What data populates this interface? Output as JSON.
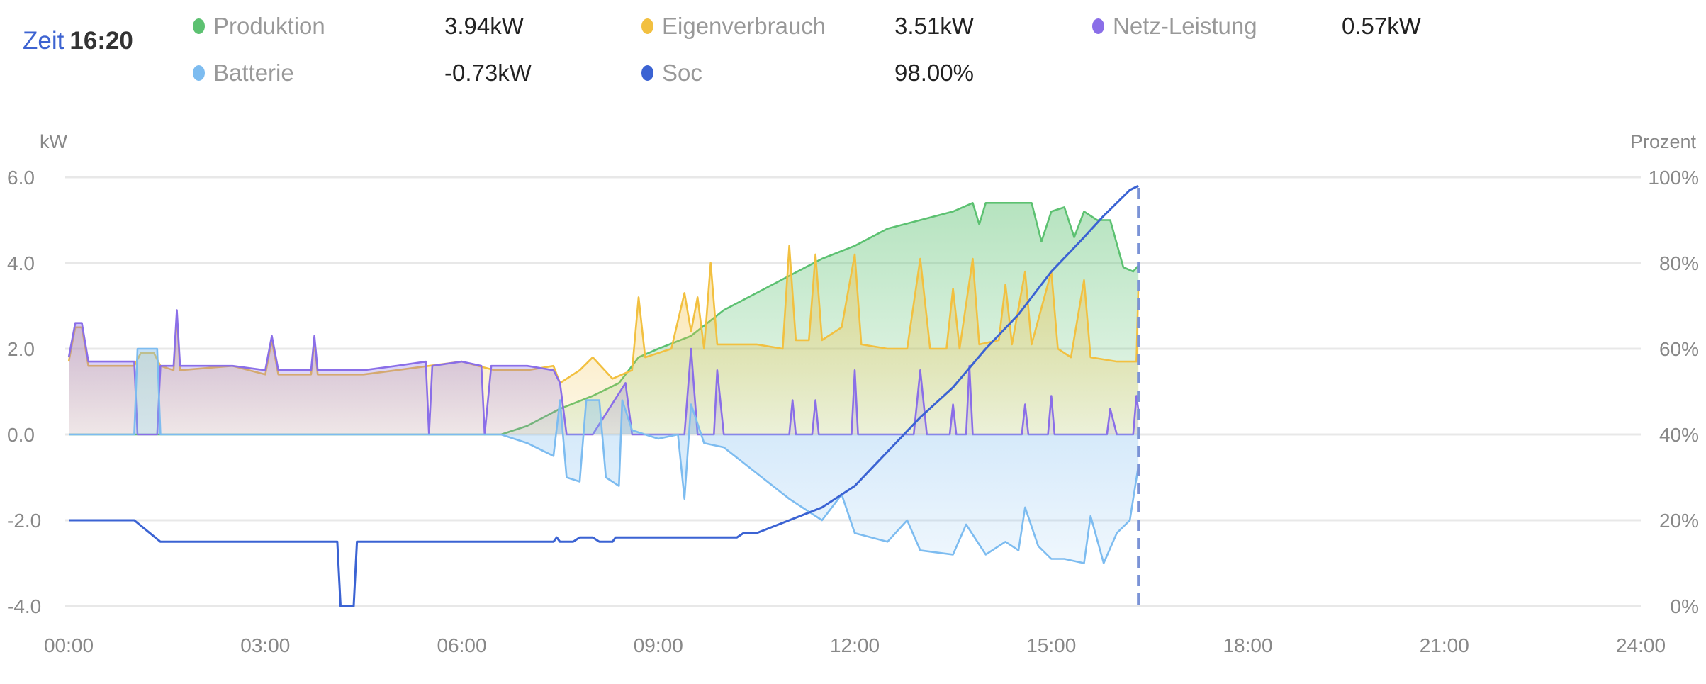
{
  "header": {
    "time_label": "Zeit",
    "time_value": "16:20"
  },
  "legend": [
    {
      "name": "Produktion",
      "value": "3.94kW",
      "color": "#5cc171"
    },
    {
      "name": "Eigenverbrauch",
      "value": "3.51kW",
      "color": "#f2c040"
    },
    {
      "name": "Netz-Leistung",
      "value": "0.57kW",
      "color": "#8a6ee8"
    },
    {
      "name": "Batterie",
      "value": "-0.73kW",
      "color": "#7dbcf0"
    },
    {
      "name": "Soc",
      "value": "98.00%",
      "color": "#3b63d3"
    }
  ],
  "chart_data": {
    "type": "line",
    "left_axis_label": "kW",
    "right_axis_label": "Prozent",
    "ylim": [
      -4,
      6
    ],
    "ylim_right": [
      0,
      100
    ],
    "xlim_hours": [
      0,
      24
    ],
    "left_ticks": [
      "6.0",
      "4.0",
      "2.0",
      "0.0",
      "-2.0",
      "-4.0"
    ],
    "right_ticks": [
      "100%",
      "80%",
      "60%",
      "40%",
      "20%",
      "0%"
    ],
    "x_ticks": [
      "00:00",
      "03:00",
      "06:00",
      "09:00",
      "12:00",
      "15:00",
      "18:00",
      "21:00",
      "24:00"
    ],
    "cursor_hour": 16.33,
    "series": [
      {
        "name": "Produktion",
        "axis": "left",
        "color": "#5cc171",
        "fill": true,
        "points": [
          [
            0,
            0
          ],
          [
            6.6,
            0
          ],
          [
            7.0,
            0.2
          ],
          [
            7.5,
            0.6
          ],
          [
            8.0,
            0.9
          ],
          [
            8.4,
            1.2
          ],
          [
            8.7,
            1.8
          ],
          [
            9.0,
            2.0
          ],
          [
            9.5,
            2.3
          ],
          [
            10.0,
            2.9
          ],
          [
            10.5,
            3.3
          ],
          [
            11.0,
            3.7
          ],
          [
            11.5,
            4.1
          ],
          [
            12.0,
            4.4
          ],
          [
            12.5,
            4.8
          ],
          [
            13.0,
            5.0
          ],
          [
            13.5,
            5.2
          ],
          [
            13.8,
            5.4
          ],
          [
            13.9,
            4.9
          ],
          [
            14.0,
            5.4
          ],
          [
            14.7,
            5.4
          ],
          [
            14.85,
            4.5
          ],
          [
            15.0,
            5.2
          ],
          [
            15.2,
            5.3
          ],
          [
            15.35,
            4.6
          ],
          [
            15.5,
            5.2
          ],
          [
            15.7,
            5.0
          ],
          [
            15.9,
            5.0
          ],
          [
            16.1,
            3.9
          ],
          [
            16.25,
            3.8
          ],
          [
            16.33,
            3.94
          ]
        ]
      },
      {
        "name": "Eigenverbrauch",
        "axis": "left",
        "color": "#f2c040",
        "fill": true,
        "points": [
          [
            0,
            1.7
          ],
          [
            0.1,
            2.5
          ],
          [
            0.2,
            2.5
          ],
          [
            0.3,
            1.6
          ],
          [
            1.0,
            1.6
          ],
          [
            1.1,
            1.9
          ],
          [
            1.3,
            1.9
          ],
          [
            1.4,
            1.6
          ],
          [
            1.6,
            1.5
          ],
          [
            1.65,
            2.8
          ],
          [
            1.7,
            1.5
          ],
          [
            2.5,
            1.6
          ],
          [
            3.0,
            1.4
          ],
          [
            3.1,
            2.2
          ],
          [
            3.2,
            1.4
          ],
          [
            3.7,
            1.4
          ],
          [
            3.75,
            2.2
          ],
          [
            3.8,
            1.4
          ],
          [
            4.5,
            1.4
          ],
          [
            5.0,
            1.5
          ],
          [
            5.5,
            1.6
          ],
          [
            6.0,
            1.7
          ],
          [
            6.5,
            1.5
          ],
          [
            7.0,
            1.5
          ],
          [
            7.4,
            1.6
          ],
          [
            7.5,
            1.2
          ],
          [
            7.8,
            1.5
          ],
          [
            8.0,
            1.8
          ],
          [
            8.3,
            1.3
          ],
          [
            8.6,
            1.5
          ],
          [
            8.7,
            3.2
          ],
          [
            8.8,
            1.8
          ],
          [
            9.2,
            2.0
          ],
          [
            9.4,
            3.3
          ],
          [
            9.5,
            2.4
          ],
          [
            9.6,
            3.2
          ],
          [
            9.7,
            2.0
          ],
          [
            9.8,
            4.0
          ],
          [
            9.9,
            2.1
          ],
          [
            10.5,
            2.1
          ],
          [
            10.9,
            2.0
          ],
          [
            11.0,
            4.4
          ],
          [
            11.1,
            2.2
          ],
          [
            11.3,
            2.2
          ],
          [
            11.4,
            4.2
          ],
          [
            11.5,
            2.2
          ],
          [
            11.8,
            2.5
          ],
          [
            12.0,
            4.2
          ],
          [
            12.1,
            2.1
          ],
          [
            12.5,
            2.0
          ],
          [
            12.8,
            2.0
          ],
          [
            13.0,
            4.1
          ],
          [
            13.15,
            2.0
          ],
          [
            13.4,
            2.0
          ],
          [
            13.5,
            3.4
          ],
          [
            13.6,
            2.0
          ],
          [
            13.8,
            4.1
          ],
          [
            13.9,
            2.1
          ],
          [
            14.2,
            2.2
          ],
          [
            14.3,
            3.5
          ],
          [
            14.4,
            2.1
          ],
          [
            14.6,
            3.8
          ],
          [
            14.7,
            2.1
          ],
          [
            15.0,
            3.8
          ],
          [
            15.1,
            2.0
          ],
          [
            15.3,
            1.8
          ],
          [
            15.5,
            3.6
          ],
          [
            15.6,
            1.8
          ],
          [
            16.0,
            1.7
          ],
          [
            16.3,
            1.7
          ],
          [
            16.33,
            3.51
          ]
        ]
      },
      {
        "name": "Netz-Leistung",
        "axis": "left",
        "color": "#8a6ee8",
        "fill": true,
        "points": [
          [
            0,
            1.8
          ],
          [
            0.1,
            2.6
          ],
          [
            0.2,
            2.6
          ],
          [
            0.3,
            1.7
          ],
          [
            1.0,
            1.7
          ],
          [
            1.05,
            0
          ],
          [
            1.35,
            0
          ],
          [
            1.4,
            1.6
          ],
          [
            1.6,
            1.6
          ],
          [
            1.65,
            2.9
          ],
          [
            1.7,
            1.6
          ],
          [
            2.5,
            1.6
          ],
          [
            3.0,
            1.5
          ],
          [
            3.1,
            2.3
          ],
          [
            3.2,
            1.5
          ],
          [
            3.7,
            1.5
          ],
          [
            3.75,
            2.3
          ],
          [
            3.8,
            1.5
          ],
          [
            4.5,
            1.5
          ],
          [
            5.0,
            1.6
          ],
          [
            5.45,
            1.7
          ],
          [
            5.5,
            0
          ],
          [
            5.55,
            1.6
          ],
          [
            6.0,
            1.7
          ],
          [
            6.3,
            1.6
          ],
          [
            6.35,
            0
          ],
          [
            6.45,
            1.6
          ],
          [
            7.0,
            1.6
          ],
          [
            7.4,
            1.5
          ],
          [
            7.5,
            1.2
          ],
          [
            7.6,
            0
          ],
          [
            7.9,
            0
          ],
          [
            8.0,
            0
          ],
          [
            8.5,
            1.2
          ],
          [
            8.6,
            0
          ],
          [
            9.0,
            0
          ],
          [
            9.4,
            0
          ],
          [
            9.5,
            2.0
          ],
          [
            9.6,
            0
          ],
          [
            9.85,
            0
          ],
          [
            9.9,
            1.5
          ],
          [
            10.0,
            0
          ],
          [
            11.0,
            0
          ],
          [
            11.05,
            0.8
          ],
          [
            11.1,
            0
          ],
          [
            11.35,
            0
          ],
          [
            11.4,
            0.8
          ],
          [
            11.45,
            0
          ],
          [
            11.95,
            0
          ],
          [
            12.0,
            1.5
          ],
          [
            12.05,
            0
          ],
          [
            12.9,
            0
          ],
          [
            13.0,
            1.5
          ],
          [
            13.1,
            0
          ],
          [
            13.45,
            0
          ],
          [
            13.5,
            0.7
          ],
          [
            13.55,
            0
          ],
          [
            13.7,
            0
          ],
          [
            13.75,
            1.6
          ],
          [
            13.8,
            0
          ],
          [
            14.55,
            0
          ],
          [
            14.6,
            0.7
          ],
          [
            14.65,
            0
          ],
          [
            14.95,
            0
          ],
          [
            15.0,
            0.9
          ],
          [
            15.05,
            0
          ],
          [
            15.85,
            0
          ],
          [
            15.9,
            0.6
          ],
          [
            16.0,
            0
          ],
          [
            16.25,
            0
          ],
          [
            16.3,
            0.9
          ],
          [
            16.33,
            0.57
          ]
        ]
      },
      {
        "name": "Batterie",
        "axis": "left",
        "color": "#7dbcf0",
        "fill": true,
        "points": [
          [
            0,
            0
          ],
          [
            1.0,
            0
          ],
          [
            1.05,
            2.0
          ],
          [
            1.35,
            2.0
          ],
          [
            1.4,
            0
          ],
          [
            6.6,
            0
          ],
          [
            7.0,
            -0.2
          ],
          [
            7.4,
            -0.5
          ],
          [
            7.5,
            0.8
          ],
          [
            7.6,
            -1.0
          ],
          [
            7.8,
            -1.1
          ],
          [
            7.9,
            0.8
          ],
          [
            8.1,
            0.8
          ],
          [
            8.2,
            -1.0
          ],
          [
            8.4,
            -1.2
          ],
          [
            8.45,
            0.8
          ],
          [
            8.6,
            0.1
          ],
          [
            9.0,
            -0.1
          ],
          [
            9.3,
            0.0
          ],
          [
            9.4,
            -1.5
          ],
          [
            9.5,
            0.7
          ],
          [
            9.7,
            -0.2
          ],
          [
            10.0,
            -0.3
          ],
          [
            10.5,
            -0.9
          ],
          [
            11.0,
            -1.5
          ],
          [
            11.5,
            -2.0
          ],
          [
            11.8,
            -1.4
          ],
          [
            12.0,
            -2.3
          ],
          [
            12.5,
            -2.5
          ],
          [
            12.8,
            -2.0
          ],
          [
            13.0,
            -2.7
          ],
          [
            13.5,
            -2.8
          ],
          [
            13.7,
            -2.1
          ],
          [
            14.0,
            -2.8
          ],
          [
            14.3,
            -2.5
          ],
          [
            14.5,
            -2.7
          ],
          [
            14.6,
            -1.7
          ],
          [
            14.8,
            -2.6
          ],
          [
            15.0,
            -2.9
          ],
          [
            15.2,
            -2.9
          ],
          [
            15.5,
            -3.0
          ],
          [
            15.6,
            -1.9
          ],
          [
            15.8,
            -3.0
          ],
          [
            16.0,
            -2.3
          ],
          [
            16.2,
            -2.0
          ],
          [
            16.33,
            -0.73
          ]
        ]
      },
      {
        "name": "Soc",
        "axis": "right",
        "color": "#3b63d3",
        "fill": false,
        "points": [
          [
            0,
            20
          ],
          [
            1.0,
            20
          ],
          [
            1.4,
            15
          ],
          [
            4.1,
            15
          ],
          [
            4.15,
            0
          ],
          [
            4.35,
            0
          ],
          [
            4.4,
            15
          ],
          [
            7.4,
            15
          ],
          [
            7.45,
            16
          ],
          [
            7.5,
            15
          ],
          [
            7.7,
            15
          ],
          [
            7.8,
            16
          ],
          [
            8.0,
            16
          ],
          [
            8.1,
            15
          ],
          [
            8.3,
            15
          ],
          [
            8.35,
            16
          ],
          [
            10.2,
            16
          ],
          [
            10.3,
            17
          ],
          [
            10.5,
            17
          ],
          [
            11.0,
            20
          ],
          [
            11.5,
            23
          ],
          [
            12.0,
            28
          ],
          [
            12.5,
            36
          ],
          [
            13.0,
            44
          ],
          [
            13.5,
            51
          ],
          [
            14.0,
            60
          ],
          [
            14.5,
            68
          ],
          [
            15.0,
            78
          ],
          [
            15.5,
            86
          ],
          [
            15.8,
            91
          ],
          [
            16.2,
            97
          ],
          [
            16.33,
            98
          ]
        ]
      }
    ]
  }
}
